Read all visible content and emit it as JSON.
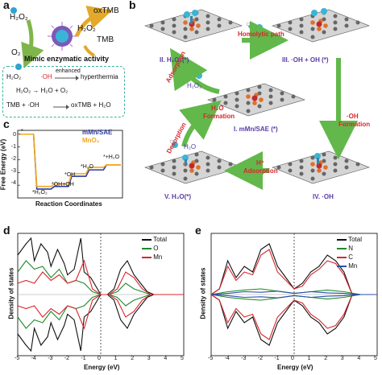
{
  "panels": {
    "a": {
      "letter": "a",
      "h2o2": "H₂O₂",
      "oxtmb": "oxTMB",
      "h2o2_right": "H₂O₂",
      "tmb": "TMB",
      "o2": "O₂",
      "caption": "Mimic enzymatic activity",
      "eq1_left": "H₂O₂",
      "eq1_mid": "·OH",
      "eq1_enh": "enhanced",
      "eq1_right": "hyperthermia",
      "eq2": "H₂O₂ → H₂O + O₂",
      "eq3_left": "TMB + ·OH",
      "eq3_right": "oxTMB + H₂O"
    },
    "b": {
      "letter": "b",
      "path_label": "Homolytic path",
      "state2": "II. H₂O₂(*)",
      "state3": "III. ·OH + OH (*)",
      "state1": "I. mMn/SAE (*)",
      "state4": "IV. ·OH",
      "state5": "V. H₂O(*)",
      "adsorption": "Adsorption",
      "desorption": "Desorption",
      "h2o2": "H₂O₂",
      "h2o_formation_1": "H₂O",
      "h2o_formation_2": "Formation",
      "oh_formation_1": "·OH",
      "oh_formation_2": "Formation",
      "hplus_1": "H⁺",
      "hplus_2": "Adsorption",
      "h2o": "H₂O"
    },
    "c": {
      "letter": "c",
      "ylabel": "Free Energy (eV)",
      "xlabel": "Reaction Coordinates",
      "legend": [
        "mMn/SAE",
        "MnO₂"
      ],
      "ann_h2o2": "*H₂O₂",
      "ann_ohoh": "*OH+OH",
      "ann_oh": "*OH",
      "ann_h2o": "*H₂O",
      "ann_star": "*",
      "ann_h2o_end": "*+H₂O",
      "yticks": [
        "0",
        "-1",
        "-2",
        "-3",
        "-4"
      ]
    },
    "d": {
      "letter": "d",
      "ylabel": "Density of states",
      "xlabel": "Energy (eV)",
      "legend": [
        "Total",
        "O",
        "Mn"
      ],
      "xticks": [
        "-5",
        "-4",
        "-3",
        "-2",
        "-1",
        "0",
        "1",
        "2",
        "3",
        "4",
        "5"
      ]
    },
    "e": {
      "letter": "e",
      "ylabel": "Density of states",
      "xlabel": "Energy (eV)",
      "legend": [
        "Total",
        "N",
        "C",
        "Mn"
      ],
      "xticks": [
        "-5",
        "-4",
        "-3",
        "-2",
        "-1",
        "0",
        "1",
        "2",
        "3",
        "4",
        "5"
      ]
    }
  },
  "colors": {
    "mMn": "#2b3aa8",
    "MnO2": "#f2a81d",
    "total": "#111111",
    "O": "#1f8a2a",
    "Mn_d": "#d8262c",
    "N": "#1f8a2a",
    "C": "#d8262c",
    "Mn_e": "#2b4fa8",
    "arrow_green": "#62b84a"
  },
  "chart_data": [
    {
      "type": "line",
      "panel": "c",
      "xlabel": "Reaction Coordinates",
      "ylabel": "Free Energy (eV)",
      "ylim": [
        -5,
        0.3
      ],
      "steps": [
        "*",
        "*H₂O₂",
        "*OH+OH",
        "*OH",
        "*H₂O",
        "*+H₂O"
      ],
      "series": [
        {
          "name": "mMn/SAE",
          "values": [
            0.0,
            -4.3,
            -4.1,
            -3.3,
            -2.8,
            -2.4
          ]
        },
        {
          "name": "MnO₂",
          "values": [
            0.0,
            -4.1,
            -3.9,
            -3.1,
            -2.6,
            -2.4
          ]
        }
      ],
      "legend_position": "top-right"
    },
    {
      "type": "line",
      "panel": "d",
      "xlabel": "Energy (eV)",
      "ylabel": "Density of states",
      "xlim": [
        -5,
        5
      ],
      "series": [
        {
          "name": "Total",
          "x": [
            -5,
            -4.5,
            -4.2,
            -4,
            -3.6,
            -3.2,
            -3,
            -2.6,
            -2.2,
            -2,
            -1.6,
            -1.2,
            -1,
            -0.6,
            -0.2,
            0,
            0.4,
            0.8,
            1.2,
            1.6,
            2,
            2.4,
            2.8,
            3.2,
            3.6,
            4,
            4.5,
            5
          ],
          "y": [
            0.7,
            0.9,
            1.0,
            0.6,
            0.9,
            0.75,
            0.5,
            0.8,
            0.55,
            0.35,
            0.45,
            1.0,
            0.4,
            0.3,
            0.1,
            0,
            0,
            0.1,
            0.45,
            0.6,
            0.35,
            0.2,
            0.05,
            0,
            0,
            0,
            0,
            0
          ]
        },
        {
          "name": "O",
          "x": [
            -5,
            -4.5,
            -4,
            -3.5,
            -3,
            -2.5,
            -2,
            -1.5,
            -1,
            -0.5,
            0,
            0.5,
            1,
            1.5,
            2,
            2.5,
            3,
            3.5,
            4,
            4.5,
            5
          ],
          "y": [
            0.4,
            0.6,
            0.45,
            0.5,
            0.3,
            0.45,
            0.2,
            0.25,
            0.2,
            0.05,
            0,
            0,
            0.05,
            0.2,
            0.1,
            0.05,
            0,
            0,
            0,
            0,
            0
          ]
        },
        {
          "name": "Mn",
          "x": [
            -5,
            -4.5,
            -4,
            -3.5,
            -3,
            -2.5,
            -2,
            -1.5,
            -1,
            -0.5,
            0,
            0.5,
            1,
            1.5,
            2,
            2.5,
            3,
            3.5,
            4,
            4.5,
            5
          ],
          "y": [
            0.2,
            0.25,
            0.2,
            0.4,
            0.25,
            0.35,
            0.2,
            0.25,
            0.6,
            0.1,
            0,
            0,
            0.1,
            0.4,
            0.3,
            0.1,
            0,
            0,
            0,
            0,
            0
          ]
        }
      ],
      "legend_position": "top-right"
    },
    {
      "type": "line",
      "panel": "e",
      "xlabel": "Energy (eV)",
      "ylabel": "Density of states",
      "xlim": [
        -5,
        5
      ],
      "series": [
        {
          "name": "Total",
          "x": [
            -5,
            -4.5,
            -4,
            -3.5,
            -3,
            -2.5,
            -2,
            -1.5,
            -1,
            -0.5,
            0,
            0.5,
            1,
            1.5,
            2,
            2.5,
            3,
            3.5,
            4,
            4.5,
            5
          ],
          "y": [
            0,
            0.1,
            0.6,
            0.3,
            0.5,
            0.4,
            0.8,
            0.9,
            0.5,
            0.3,
            0.1,
            0.2,
            0.4,
            0.5,
            0.7,
            0.6,
            0.4,
            0,
            0,
            0,
            0
          ]
        },
        {
          "name": "N",
          "x": [
            -5,
            -4,
            -3,
            -2,
            -1,
            0,
            1,
            2,
            3,
            4,
            5
          ],
          "y": [
            0,
            0.05,
            0.08,
            0.1,
            0.06,
            0.02,
            0.05,
            0.08,
            0.05,
            0,
            0
          ]
        },
        {
          "name": "C",
          "x": [
            -5,
            -4.5,
            -4,
            -3.5,
            -3,
            -2.5,
            -2,
            -1.5,
            -1,
            -0.5,
            0,
            0.5,
            1,
            1.5,
            2,
            2.5,
            3,
            3.5,
            4,
            4.5,
            5
          ],
          "y": [
            0,
            0.1,
            0.5,
            0.25,
            0.4,
            0.35,
            0.7,
            0.8,
            0.4,
            0.25,
            0.1,
            0.15,
            0.35,
            0.45,
            0.6,
            0.55,
            0.35,
            0,
            0,
            0,
            0
          ]
        },
        {
          "name": "Mn",
          "x": [
            -5,
            -4,
            -3,
            -2,
            -1,
            0,
            1,
            2,
            3,
            4,
            5
          ],
          "y": [
            0,
            0.02,
            0.05,
            0.04,
            0.06,
            0.02,
            0.05,
            0.03,
            0.02,
            0,
            0
          ]
        }
      ],
      "legend_position": "top-right"
    }
  ]
}
